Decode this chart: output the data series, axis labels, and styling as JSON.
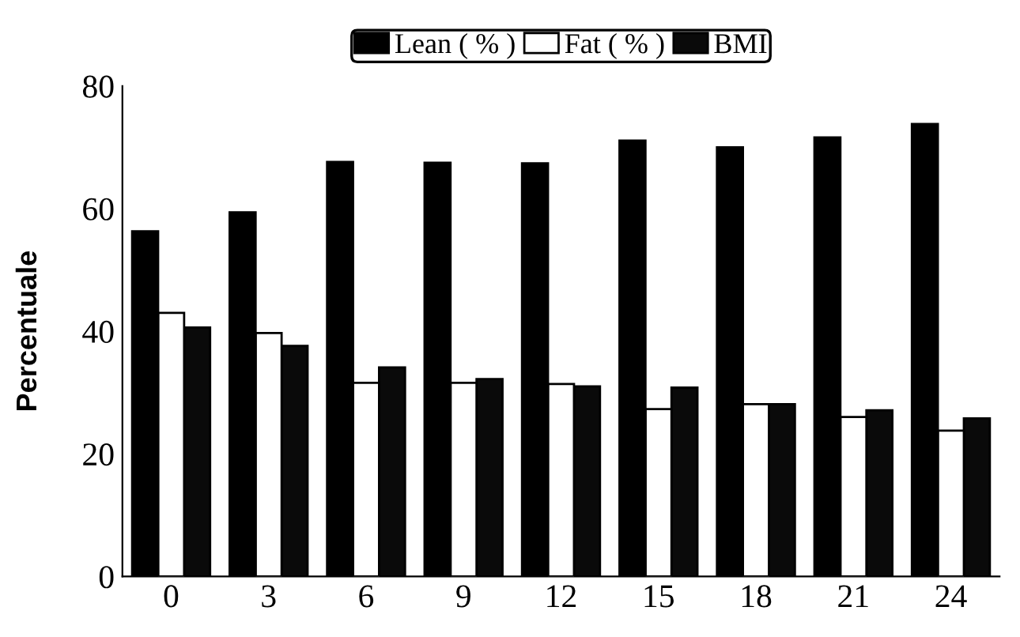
{
  "chart_data": {
    "type": "bar",
    "ylabel": "Percentuale",
    "categories": [
      "0",
      "3",
      "6",
      "9",
      "12",
      "15",
      "18",
      "21",
      "24"
    ],
    "series": [
      {
        "name": "Lean ( % )",
        "color": "#000000",
        "values": [
          56.3,
          59.4,
          67.6,
          67.5,
          67.4,
          71.1,
          70.0,
          71.6,
          73.8
        ]
      },
      {
        "name": "Fat ( % )",
        "color": "#ffffff",
        "values": [
          43.0,
          39.7,
          31.6,
          31.6,
          31.4,
          27.3,
          28.1,
          26.0,
          23.8
        ]
      },
      {
        "name": "BMI",
        "color": "#0a0a0a",
        "values": [
          40.6,
          37.6,
          34.1,
          32.2,
          31.0,
          30.8,
          28.1,
          27.1,
          25.8
        ]
      }
    ],
    "ylim": [
      0,
      80
    ],
    "yticks": [
      0,
      20,
      40,
      60,
      80
    ],
    "grid": false,
    "legend": "top"
  }
}
